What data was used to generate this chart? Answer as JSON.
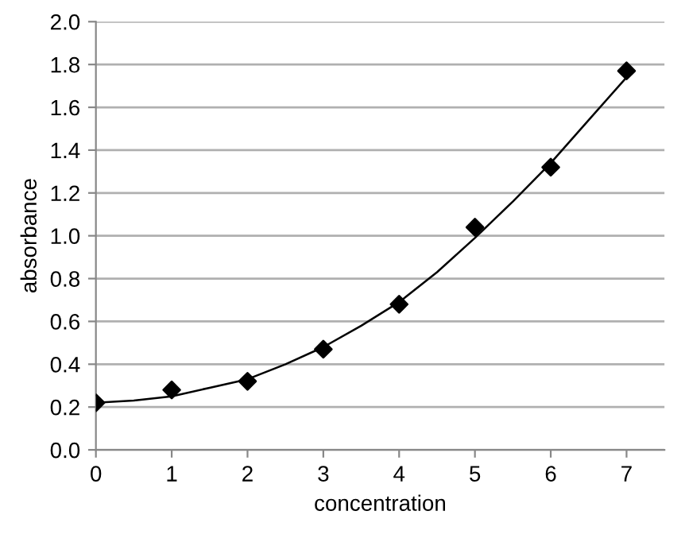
{
  "chart_data": {
    "type": "scatter",
    "xlabel": "concentration",
    "ylabel": "absorbance",
    "xlim": [
      0,
      7.5
    ],
    "xticks": [
      0,
      1,
      2,
      3,
      4,
      5,
      6,
      7
    ],
    "ylim": [
      0,
      2.0
    ],
    "yticks": [
      {
        "value": 0,
        "label": "0.0"
      },
      {
        "value": 0.2,
        "label": "0.2"
      },
      {
        "value": 0.4,
        "label": "0.4"
      },
      {
        "value": 0.6,
        "label": "0.6"
      },
      {
        "value": 0.8,
        "label": "0.8"
      },
      {
        "value": 1.0,
        "label": "1.0"
      },
      {
        "value": 1.2,
        "label": "1.2"
      },
      {
        "value": 1.4,
        "label": "1.4"
      },
      {
        "value": 1.6,
        "label": "1.6"
      },
      {
        "value": 1.8,
        "label": "1.8"
      },
      {
        "value": 2.0,
        "label": "2.0"
      }
    ],
    "grid": "y",
    "series": [
      {
        "marker": "diamond",
        "color": "#000000",
        "x": [
          0,
          1,
          2,
          3,
          4,
          5,
          6,
          7
        ],
        "values": [
          0.22,
          0.28,
          0.32,
          0.47,
          0.68,
          1.04,
          1.32,
          1.77
        ]
      },
      {
        "type": "line",
        "marker": "none",
        "line_style": "solid",
        "color": "#000000",
        "x": [
          0,
          0.5,
          1,
          1.5,
          2,
          2.5,
          3,
          3.5,
          4,
          4.5,
          5,
          5.5,
          6,
          6.5,
          7
        ],
        "values": [
          0.22,
          0.23,
          0.25,
          0.29,
          0.33,
          0.4,
          0.48,
          0.58,
          0.69,
          0.83,
          0.99,
          1.16,
          1.34,
          1.54,
          1.74
        ]
      }
    ]
  }
}
